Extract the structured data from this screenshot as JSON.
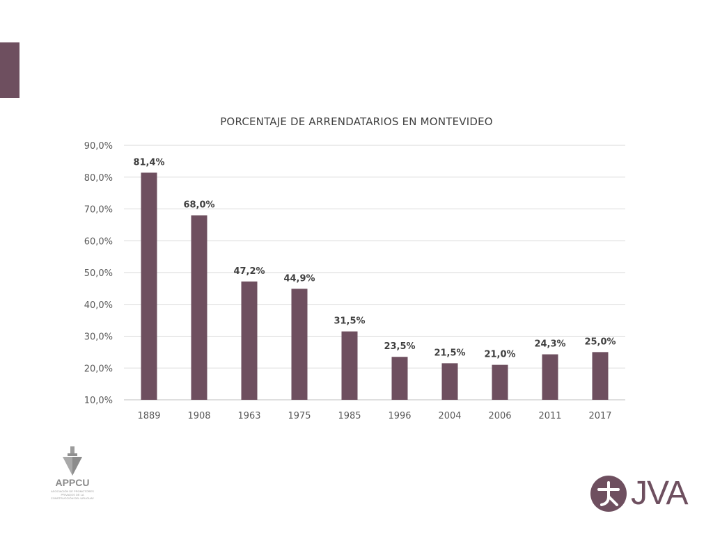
{
  "colors": {
    "bar": "#6e4f5f",
    "accent": "#6e4f5f",
    "grid": "#d9d9d9",
    "text": "#595959"
  },
  "logos": {
    "appcu": {
      "name": "APPCU",
      "subtitle": "ASOCIACIÓN DE PROMOTORES PRIVADOS DE LA CONSTRUCCIÓN DEL URUGUAY",
      "icon": "plumb-bob-icon"
    },
    "jva": {
      "name": "JVA",
      "icon": "jva-monogram-icon"
    }
  },
  "chart_data": {
    "type": "bar",
    "title": "PORCENTAJE DE ARRENDATARIOS EN MONTEVIDEO",
    "categories": [
      "1889",
      "1908",
      "1963",
      "1975",
      "1985",
      "1996",
      "2004",
      "2006",
      "2011",
      "2017"
    ],
    "values": [
      81.4,
      68.0,
      47.2,
      44.9,
      31.5,
      23.5,
      21.5,
      21.0,
      24.3,
      25.0
    ],
    "data_labels": [
      "81,4%",
      "68,0%",
      "47,2%",
      "44,9%",
      "31,5%",
      "23,5%",
      "21,5%",
      "21,0%",
      "24,3%",
      "25,0%"
    ],
    "yticks": [
      10,
      20,
      30,
      40,
      50,
      60,
      70,
      80,
      90
    ],
    "ytick_labels": [
      "10,0%",
      "20,0%",
      "30,0%",
      "40,0%",
      "50,0%",
      "60,0%",
      "70,0%",
      "80,0%",
      "90,0%"
    ],
    "ylim": [
      10,
      90
    ],
    "xlabel": "",
    "ylabel": "",
    "grid": true,
    "legend": "none"
  }
}
